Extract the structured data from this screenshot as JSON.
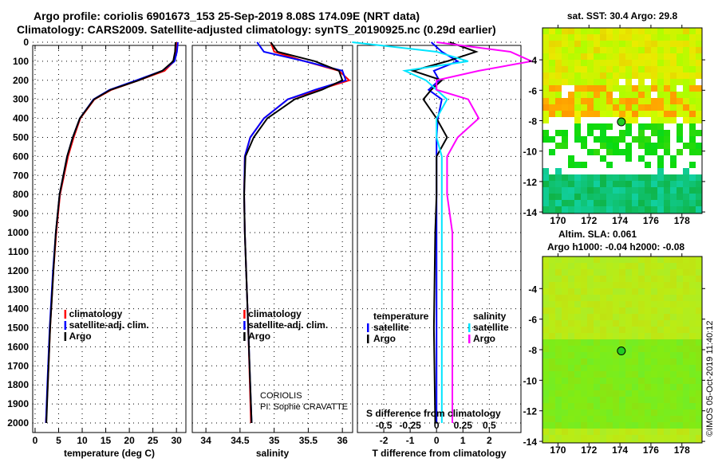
{
  "title": {
    "line1": "Argo profile: coriolis 6901673_153 25-Sep-2019 8.08S 174.09E (NRT data)",
    "line2": "Climatology: CARS2009. Satellite-adjusted climatology: synTS_20190925.nc (0.29d earlier)"
  },
  "side_label": "©IMOS 05-Oct-2019 11:40:12",
  "colors": {
    "clim": "#ff0000",
    "sat": "#0000ff",
    "argo": "#000000",
    "sal_sat": "#00e5ff",
    "sal_argo": "#ff00ff"
  },
  "chart_data": [
    {
      "type": "line",
      "name": "temperature",
      "xlabel": "temperature (deg C)",
      "xlim": [
        -0.5,
        32
      ],
      "ylim": [
        0,
        2130
      ],
      "xticks": [
        0,
        5,
        10,
        15,
        20,
        25,
        30
      ],
      "yticks": [
        0,
        100,
        200,
        300,
        400,
        500,
        600,
        700,
        800,
        900,
        1000,
        1100,
        1200,
        1300,
        1400,
        1500,
        1600,
        1700,
        1800,
        1900,
        2000
      ],
      "legend": [
        "climatology",
        "satellite-adj. clim.",
        "Argo"
      ],
      "depth": [
        0,
        50,
        100,
        150,
        200,
        250,
        300,
        400,
        500,
        600,
        800,
        1000,
        1200,
        1500,
        1800,
        2000
      ],
      "series": [
        {
          "name": "climatology",
          "values": [
            30.0,
            29.9,
            29.5,
            27.5,
            22,
            16.2,
            12.6,
            9.6,
            8.2,
            7.0,
            5.3,
            4.5,
            3.9,
            3.2,
            2.7,
            2.3
          ]
        },
        {
          "name": "satellite-adj. clim.",
          "values": [
            30.3,
            30.1,
            29.6,
            27,
            21.5,
            15.8,
            12.4,
            9.5,
            8.0,
            6.8,
            5.2,
            4.4,
            3.8,
            3.1,
            2.6,
            2.3
          ]
        },
        {
          "name": "Argo",
          "values": [
            29.8,
            29.7,
            29.3,
            27,
            22,
            16,
            12.5,
            9.5,
            8.0,
            6.8,
            5.2,
            4.4,
            3.9,
            3.2,
            2.7,
            2.4
          ]
        }
      ]
    },
    {
      "type": "line",
      "name": "salinity",
      "xlabel": "salinity",
      "xlim": [
        33.8,
        36.15
      ],
      "ylim": [
        0,
        2130
      ],
      "xticks": [
        34,
        34.5,
        35,
        35.5,
        36
      ],
      "legend": [
        "climatology",
        "satellite-adj. clim.",
        "Argo"
      ],
      "annotation": [
        "CORIOLIS",
        "PI: Sophie CRAVATTE"
      ],
      "depth": [
        0,
        50,
        100,
        150,
        200,
        250,
        300,
        400,
        500,
        600,
        800,
        1000,
        1500,
        2000
      ],
      "series": [
        {
          "name": "climatology",
          "values": [
            34.95,
            35.0,
            35.45,
            35.95,
            36.1,
            35.65,
            35.2,
            34.85,
            34.65,
            34.57,
            34.56,
            34.57,
            34.62,
            34.66
          ]
        },
        {
          "name": "satellite-adj. clim.",
          "values": [
            34.75,
            34.85,
            35.45,
            36.0,
            36.05,
            35.6,
            35.2,
            34.85,
            34.65,
            34.57,
            34.56,
            34.57,
            34.62,
            34.67
          ]
        },
        {
          "name": "Argo",
          "values": [
            34.95,
            35.05,
            35.6,
            35.95,
            36.0,
            35.7,
            35.3,
            34.9,
            34.7,
            34.58,
            34.56,
            34.57,
            34.62,
            34.67
          ]
        }
      ]
    },
    {
      "type": "line",
      "name": "differences",
      "xlabel": "T difference from climatology",
      "xlabel2": "S difference from climatology",
      "xlim": [
        -3.0,
        3.2
      ],
      "ylim": [
        0,
        2130
      ],
      "xticks": [
        -2,
        -1,
        0,
        1,
        2
      ],
      "sticks": [
        "-0.5",
        "-0.25",
        "0",
        "0.25",
        "0.5"
      ],
      "legend_t": [
        "temperature",
        "satellite",
        "Argo"
      ],
      "legend_s": [
        "salinity",
        "satellite",
        "Argo"
      ],
      "depth": [
        0,
        50,
        100,
        150,
        200,
        250,
        300,
        400,
        500,
        600,
        800,
        1000,
        1500,
        2000
      ],
      "series": [
        {
          "name": "T satellite",
          "values": [
            -0.2,
            0.2,
            0.8,
            -0.1,
            0.1,
            -0.3,
            0.2,
            0.05,
            0.0,
            0.0,
            0.0,
            0.0,
            0.0,
            0.0
          ]
        },
        {
          "name": "T Argo",
          "values": [
            0.5,
            1.5,
            0.4,
            -0.9,
            0.2,
            -0.2,
            -0.5,
            0.0,
            0.4,
            0.0,
            0.0,
            -0.05,
            -0.1,
            -0.05
          ]
        },
        {
          "name": "S satellite",
          "values": [
            -0.8,
            0.0,
            0.3,
            -0.3,
            -0.1,
            0.0,
            0.1,
            0.0,
            0.0,
            0.05,
            0.05,
            0.05,
            0.05,
            0.05
          ]
        },
        {
          "name": "S Argo",
          "values": [
            0.0,
            0.7,
            0.9,
            0.4,
            0.0,
            0.0,
            0.3,
            0.4,
            0.2,
            0.1,
            0.1,
            0.15,
            0.15,
            0.15
          ]
        }
      ]
    }
  ],
  "maps": [
    {
      "name": "sst-map",
      "title": "sat. SST: 30.4 Argo: 29.8",
      "lonticks": [
        170,
        172,
        174,
        176,
        178
      ],
      "latticks": [
        -4,
        -6,
        -8,
        -10,
        -12,
        -14
      ],
      "argo_pos": [
        174.09,
        -8.08
      ]
    },
    {
      "name": "sla-map",
      "title1": "Altim. SLA: 0.061",
      "title2": "Argo h1000: -0.04 h2000: -0.08",
      "lonticks": [
        170,
        172,
        174,
        176,
        178
      ],
      "latticks": [
        -4,
        -6,
        -8,
        -10,
        -12,
        -14
      ],
      "argo_pos": [
        174.09,
        -8.08
      ]
    }
  ]
}
